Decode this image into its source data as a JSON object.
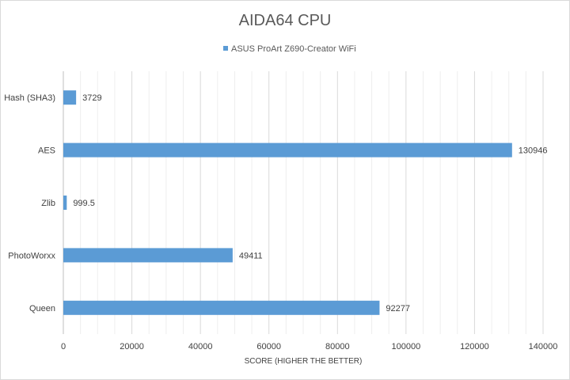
{
  "chart_data": {
    "type": "bar",
    "orientation": "horizontal",
    "title": "AIDA64 CPU",
    "xlabel": "SCORE (HIGHER THE BETTER)",
    "ylabel": "",
    "xlim": [
      0,
      140000
    ],
    "x_ticks": [
      "0",
      "20000",
      "40000",
      "60000",
      "80000",
      "100000",
      "120000",
      "140000"
    ],
    "grid": true,
    "legend_position": "top",
    "categories": [
      "Hash (SHA3)",
      "AES",
      "Zlib",
      "PhotoWorxx",
      "Queen"
    ],
    "series": [
      {
        "name": "ASUS ProArt Z690-Creator WiFi",
        "color": "#5b9bd5",
        "values": [
          3729,
          130946,
          999.5,
          49411,
          92277
        ],
        "labels": [
          "3729",
          "130946",
          "999.5",
          "49411",
          "92277"
        ]
      }
    ]
  }
}
